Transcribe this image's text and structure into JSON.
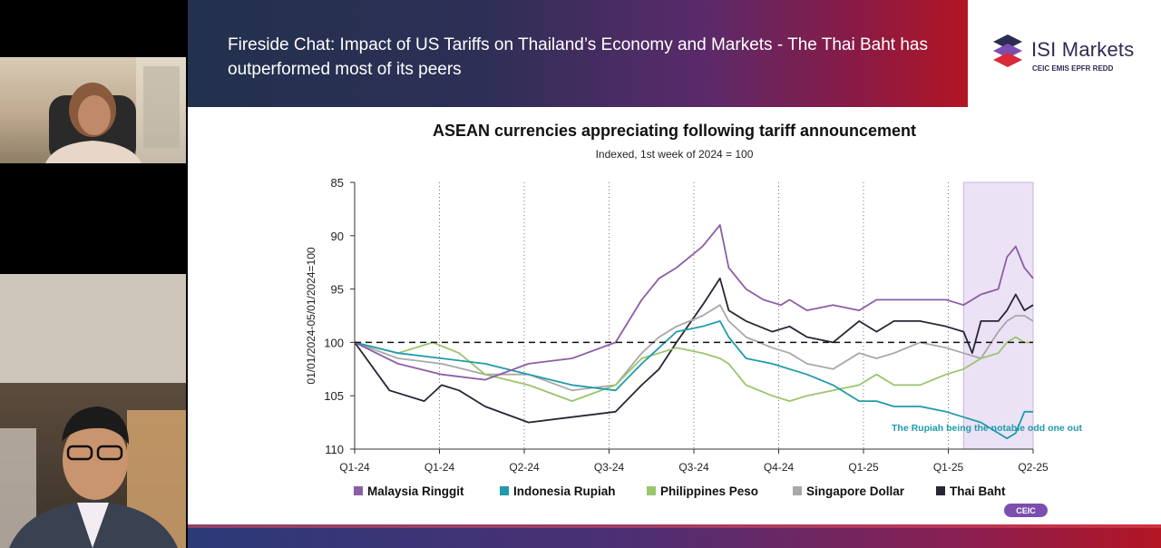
{
  "slide": {
    "title": "Fireside Chat: Impact of US Tariffs on Thailand’s Economy and Markets - The Thai Baht has outperformed most of its peers",
    "brand": "ISI Markets",
    "partners": "CEIC  EMIS  EPFR  REDD",
    "source_logo": "CEIC"
  },
  "colors": {
    "malaysia": "#8b5ea6",
    "indonesia": "#1f9bab",
    "philippines": "#9bc46b",
    "singapore": "#a8a8a8",
    "thai": "#262636",
    "highlight": "#ebe2f5"
  },
  "chart_data": {
    "type": "line",
    "title": "ASEAN currencies appreciating following tariff announcement",
    "subtitle": "Indexed, 1st week of 2024 = 100",
    "ylabel": "01/01/2024-05/01/2024=100",
    "ylim": [
      110,
      85
    ],
    "y_inverted": true,
    "yticks": [
      85,
      90,
      95,
      100,
      105,
      110
    ],
    "x_tick_labels": [
      "Q1-24",
      "Q1-24",
      "Q2-24",
      "Q3-24",
      "Q3-24",
      "Q4-24",
      "Q1-25",
      "Q1-25",
      "Q2-25"
    ],
    "reference_line": 100,
    "highlight_region": {
      "from_week": 70,
      "to_week": 78
    },
    "annotation": "The Rupiah being the notable odd one out",
    "x_unit": "weeks since 1st week of 2024",
    "series": [
      {
        "name": "Malaysia Ringgit",
        "color": "#8b5ea6",
        "x": [
          0,
          5,
          10,
          15,
          20,
          25,
          30,
          33,
          35,
          37,
          40,
          42,
          43,
          45,
          47,
          49,
          50,
          52,
          55,
          58,
          60,
          62,
          65,
          68,
          70,
          72,
          74,
          75,
          76,
          77,
          78
        ],
        "y": [
          100,
          102,
          103,
          103.5,
          102,
          101.5,
          100,
          96,
          94,
          93,
          91,
          89,
          93,
          95,
          96,
          96.5,
          96,
          97,
          96.5,
          97,
          96,
          96,
          96,
          96,
          96.5,
          95.5,
          95,
          92,
          91,
          93,
          94
        ]
      },
      {
        "name": "Indonesia Rupiah",
        "color": "#1f9bab",
        "x": [
          0,
          5,
          10,
          15,
          20,
          25,
          30,
          33,
          35,
          37,
          40,
          42,
          43,
          45,
          48,
          50,
          52,
          55,
          58,
          60,
          62,
          65,
          68,
          70,
          72,
          74,
          75,
          76,
          77,
          78
        ],
        "y": [
          100,
          101,
          101.5,
          102,
          103,
          104,
          104.5,
          102,
          100.5,
          99,
          98.5,
          98,
          99.5,
          101.5,
          102,
          102.5,
          103,
          104,
          105.5,
          105.5,
          106,
          106,
          106.5,
          107,
          107.5,
          108.5,
          109,
          108.5,
          106.5,
          106.5
        ]
      },
      {
        "name": "Philippines Peso",
        "color": "#9bc46b",
        "x": [
          0,
          5,
          9,
          12,
          15,
          20,
          25,
          30,
          33,
          35,
          37,
          40,
          42,
          43,
          45,
          48,
          50,
          52,
          55,
          58,
          60,
          62,
          65,
          68,
          70,
          72,
          74,
          75,
          76,
          77,
          78
        ],
        "y": [
          100,
          101,
          100,
          101,
          103,
          104,
          105.5,
          104,
          101.5,
          101,
          100.5,
          101,
          101.5,
          102,
          104,
          105,
          105.5,
          105,
          104.5,
          104,
          103,
          104,
          104,
          103,
          102.5,
          101.5,
          101,
          100,
          99.5,
          100,
          100
        ]
      },
      {
        "name": "Singapore Dollar",
        "color": "#a8a8a8",
        "x": [
          0,
          5,
          10,
          15,
          20,
          25,
          30,
          33,
          35,
          37,
          40,
          42,
          43,
          45,
          48,
          50,
          52,
          55,
          58,
          60,
          62,
          65,
          68,
          70,
          72,
          74,
          75,
          76,
          77,
          78
        ],
        "y": [
          100,
          101.5,
          102,
          103,
          103,
          104.5,
          104,
          101,
          99.5,
          98.5,
          97.5,
          96.5,
          98,
          99.5,
          100.5,
          101,
          102,
          102.5,
          101,
          101.5,
          101,
          100,
          100.5,
          101,
          101.5,
          99,
          98,
          97.5,
          97.5,
          98
        ]
      },
      {
        "name": "Thai Baht",
        "color": "#262636",
        "x": [
          0,
          4,
          8,
          10,
          12,
          15,
          20,
          25,
          30,
          33,
          35,
          37,
          40,
          42,
          43,
          45,
          48,
          50,
          52,
          55,
          58,
          60,
          62,
          65,
          68,
          70,
          71,
          72,
          74,
          75,
          76,
          77,
          78
        ],
        "y": [
          100,
          104.5,
          105.5,
          104,
          104.5,
          106,
          107.5,
          107,
          106.5,
          104,
          102.5,
          100,
          96.5,
          94,
          97,
          98,
          99,
          98.5,
          99.5,
          100,
          98,
          99,
          98,
          98,
          98.5,
          99,
          101,
          98,
          98,
          97,
          95.5,
          97,
          96.5
        ]
      }
    ]
  }
}
